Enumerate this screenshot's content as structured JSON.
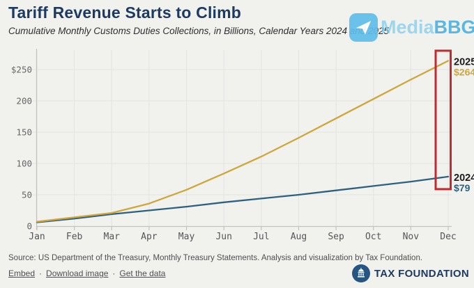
{
  "header": {
    "title": "Tariff Revenue Starts to Climb",
    "subtitle": "Cumulative Monthly Customs Duties Collections, in Billions, Calendar Years 2024 and 2025"
  },
  "watermark": {
    "brand": "MediaBBG",
    "text_light": "Media",
    "text_bold": "BBG",
    "color": "#4db3e4"
  },
  "chart_data": {
    "type": "line",
    "title": "Tariff Revenue Starts to Climb",
    "subtitle": "Cumulative Monthly Customs Duties Collections, in Billions, Calendar Years 2024 and 2025",
    "categories": [
      "Jan",
      "Feb",
      "Mar",
      "Apr",
      "May",
      "Jun",
      "Jul",
      "Aug",
      "Sep",
      "Oct",
      "Nov",
      "Dec"
    ],
    "series": [
      {
        "name": "2025",
        "color": "#cfa63b",
        "values": [
          7,
          14,
          21,
          36,
          58,
          84,
          111,
          141,
          172,
          203,
          234,
          264
        ],
        "end_year_label": "2025",
        "end_value_label": "$264"
      },
      {
        "name": "2024",
        "color": "#2f617f",
        "values": [
          6,
          12,
          19,
          25,
          31,
          38,
          44,
          50,
          57,
          64,
          71,
          79
        ],
        "end_year_label": "2024",
        "end_value_label": "$79"
      }
    ],
    "yticks": [
      {
        "label": "$250",
        "value": 250
      },
      {
        "label": "200",
        "value": 200
      },
      {
        "label": "150",
        "value": 150
      },
      {
        "label": "100",
        "value": 100
      },
      {
        "label": "50",
        "value": 50
      },
      {
        "label": "0",
        "value": 0
      }
    ],
    "ylim": [
      0,
      280
    ],
    "xlabel": "",
    "ylabel": "",
    "grid": true,
    "legend_position": "end-of-line-labels",
    "annotation": {
      "type": "highlight-box",
      "target": "Dec end values",
      "color": "#bf2b31"
    },
    "colors": {
      "grid": "#e3e3e0",
      "axis": "#c2c2bf",
      "tick_text": "#666666",
      "end_year_text": "#1b1b1b"
    }
  },
  "footer": {
    "source": "Source: US Department of the Treasury, Monthly Treasury Statements. Analysis and visualization by Tax Foundation.",
    "links": [
      "Embed",
      "Download image",
      "Get the data"
    ],
    "separator": "·",
    "brand": "TAX FOUNDATION"
  }
}
